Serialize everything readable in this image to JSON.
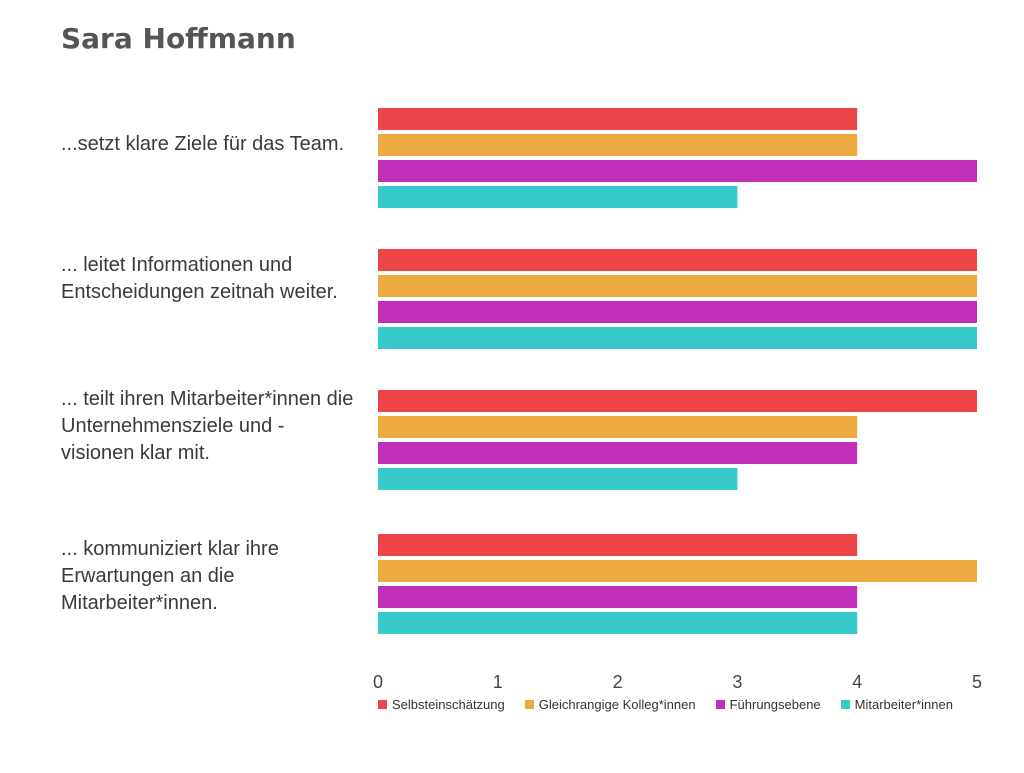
{
  "title": "Sara Hoffmann",
  "chart_data": {
    "type": "bar",
    "orientation": "horizontal",
    "categories": [
      "...setzt klare Ziele für das Team.",
      "... leitet Informationen und Entscheidungen zeitnah weiter.",
      "... teilt ihren Mitarbeiter*innen die Unternehmensziele und -visionen klar mit.",
      "... kommuniziert klar ihre Erwartungen an die Mitarbeiter*innen."
    ],
    "series": [
      {
        "name": "Selbsteinschätzung",
        "color": "#ee4549",
        "values": [
          4,
          5,
          5,
          4
        ]
      },
      {
        "name": "Gleichrangige Kolleg*innen",
        "color": "#eca93f",
        "values": [
          4,
          5,
          4,
          5
        ]
      },
      {
        "name": "Führungsebene",
        "color": "#c02fb7",
        "values": [
          5,
          5,
          4,
          4
        ]
      },
      {
        "name": "Mitarbeiter*innen",
        "color": "#36c9c9",
        "values": [
          3,
          5,
          3,
          4
        ]
      }
    ],
    "xlim": [
      0,
      5
    ],
    "xticks": [
      0,
      1,
      2,
      3,
      4,
      5
    ],
    "grid": false,
    "legend": "bottom"
  }
}
